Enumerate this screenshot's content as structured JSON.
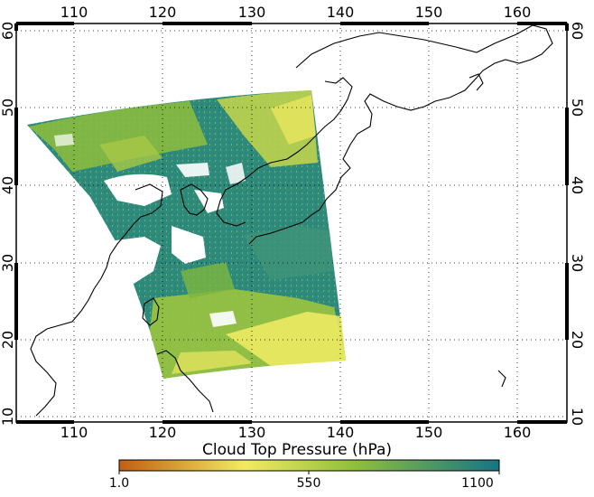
{
  "map": {
    "lon_ticks": [
      "110",
      "120",
      "130",
      "140",
      "150",
      "160"
    ],
    "lat_ticks": [
      "60",
      "50",
      "40",
      "30",
      "20",
      "10"
    ],
    "lon_range": [
      104,
      166
    ],
    "lat_range": [
      10,
      62
    ],
    "graticule": "dotted",
    "background": "#ffffff"
  },
  "colorbar": {
    "title": "Cloud Top Pressure (hPa)",
    "labels": [
      "1.0",
      "550",
      "1100"
    ],
    "colors": [
      "#c25e12",
      "#f3ea62",
      "#8fbf3c",
      "#157585"
    ]
  }
}
